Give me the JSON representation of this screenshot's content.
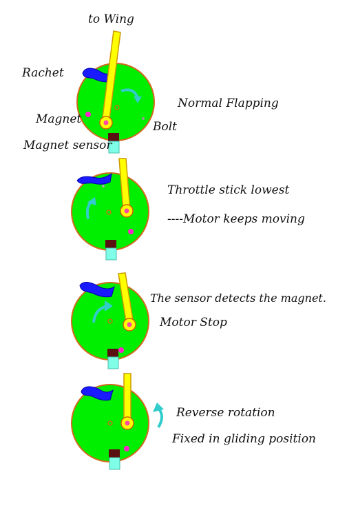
{
  "labels": {
    "to_wing": "to Wing",
    "rachet": "Rachet",
    "magnet": "Magnet",
    "bolt": "Bolt",
    "magnet_sensor": "Magnet sensor",
    "normal_flapping": "Normal Flapping",
    "throttle_lowest": "Throttle stick lowest",
    "motor_keeps_moving": "----Motor keeps moving",
    "sensor_detects": "The sensor detects the magnet.",
    "motor_stop": "Motor Stop",
    "reverse_rotation": "Reverse rotation",
    "fixed_gliding": "Fixed in gliding position"
  },
  "colors": {
    "disc_fill": "#00ee00",
    "disc_edge": "#d2691e",
    "arm": "#ffff00",
    "arm_edge": "#cc9900",
    "rachet": "#1a1aff",
    "magnet": "#ff22cc",
    "sensor_body": "#7fffe8",
    "sensor_top": "#5a1010",
    "arrow": "#33cccc"
  }
}
